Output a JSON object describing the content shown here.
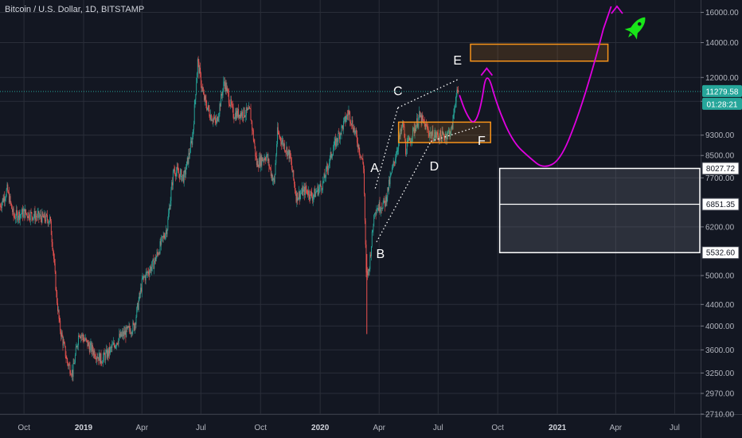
{
  "title": "Bitcoin / U.S. Dollar, 1D, BITSTAMP",
  "colors": {
    "background": "#131722",
    "grid": "#2a2e39",
    "up": "#26a69a",
    "down": "#ef5350",
    "projection": "#e000e0",
    "zone": "#f7931a",
    "price_line": "#26a69a",
    "rocket": "#19e619"
  },
  "rocket_icon": "rocket-icon",
  "chart_data": {
    "type": "candlestick",
    "yscale": "log",
    "ylim": [
      2710,
      16900
    ],
    "xlim": [
      "2018-08-25",
      "2021-08-10"
    ],
    "y_ticks": [
      16000,
      14000,
      12000,
      10800,
      9300,
      8500,
      7700,
      6200,
      5000,
      4400,
      4000,
      3600,
      3250,
      2970,
      2710
    ],
    "y_tick_labels": [
      "16000.00",
      "14000.00",
      "12000.00",
      "10800.00",
      "9300.00",
      "8500.00",
      "7700.00",
      "6200.00",
      "5000.00",
      "4400.00",
      "4000.00",
      "3600.00",
      "3250.00",
      "2970.00",
      "2710.00"
    ],
    "x_ticks": [
      {
        "label": "Oct",
        "date": "2018-10-01",
        "bold": false
      },
      {
        "label": "2019",
        "date": "2019-01-01",
        "bold": true
      },
      {
        "label": "Apr",
        "date": "2019-04-01",
        "bold": false
      },
      {
        "label": "Jul",
        "date": "2019-07-01",
        "bold": false
      },
      {
        "label": "Oct",
        "date": "2019-10-01",
        "bold": false
      },
      {
        "label": "2020",
        "date": "2020-01-01",
        "bold": true
      },
      {
        "label": "Apr",
        "date": "2020-04-01",
        "bold": false
      },
      {
        "label": "Jul",
        "date": "2020-07-01",
        "bold": false
      },
      {
        "label": "Oct",
        "date": "2020-10-01",
        "bold": false
      },
      {
        "label": "2021",
        "date": "2021-01-01",
        "bold": true
      },
      {
        "label": "Apr",
        "date": "2021-04-01",
        "bold": false
      },
      {
        "label": "Jul",
        "date": "2021-07-01",
        "bold": false
      }
    ],
    "price_path": [
      [
        "2018-08-25",
        6800
      ],
      [
        "2018-09-05",
        7300
      ],
      [
        "2018-09-15",
        6500
      ],
      [
        "2018-10-01",
        6600
      ],
      [
        "2018-10-20",
        6500
      ],
      [
        "2018-11-10",
        6400
      ],
      [
        "2018-11-15",
        5600
      ],
      [
        "2018-11-20",
        4600
      ],
      [
        "2018-11-25",
        4000
      ],
      [
        "2018-12-07",
        3400
      ],
      [
        "2018-12-15",
        3250
      ],
      [
        "2018-12-25",
        3900
      ],
      [
        "2019-01-10",
        3650
      ],
      [
        "2019-01-28",
        3450
      ],
      [
        "2019-02-08",
        3550
      ],
      [
        "2019-02-25",
        3800
      ],
      [
        "2019-03-20",
        4000
      ],
      [
        "2019-04-02",
        4900
      ],
      [
        "2019-04-20",
        5300
      ],
      [
        "2019-05-10",
        6200
      ],
      [
        "2019-05-20",
        8000
      ],
      [
        "2019-06-05",
        7700
      ],
      [
        "2019-06-18",
        9200
      ],
      [
        "2019-06-26",
        12900
      ],
      [
        "2019-07-05",
        11000
      ],
      [
        "2019-07-15",
        10200
      ],
      [
        "2019-07-25",
        9800
      ],
      [
        "2019-08-06",
        11800
      ],
      [
        "2019-08-20",
        10200
      ],
      [
        "2019-09-15",
        10300
      ],
      [
        "2019-09-25",
        8200
      ],
      [
        "2019-10-10",
        8500
      ],
      [
        "2019-10-22",
        7500
      ],
      [
        "2019-10-27",
        9400
      ],
      [
        "2019-11-15",
        8500
      ],
      [
        "2019-11-25",
        7100
      ],
      [
        "2019-12-10",
        7300
      ],
      [
        "2019-12-20",
        7100
      ],
      [
        "2020-01-05",
        7500
      ],
      [
        "2020-01-20",
        8700
      ],
      [
        "2020-02-14",
        10300
      ],
      [
        "2020-02-25",
        9300
      ],
      [
        "2020-03-08",
        8100
      ],
      [
        "2020-03-12",
        5000
      ],
      [
        "2020-03-16",
        5100
      ],
      [
        "2020-03-25",
        6700
      ],
      [
        "2020-04-10",
        6900
      ],
      [
        "2020-04-29",
        8800
      ],
      [
        "2020-05-08",
        9800
      ],
      [
        "2020-05-12",
        8700
      ],
      [
        "2020-06-02",
        10100
      ],
      [
        "2020-06-20",
        9300
      ],
      [
        "2020-07-10",
        9250
      ],
      [
        "2020-07-22",
        9500
      ],
      [
        "2020-07-28",
        11000
      ],
      [
        "2020-08-02",
        11279.58
      ]
    ],
    "current_price": 11279.58,
    "current_price_label": "11279.58",
    "countdown_label": "01:28:21",
    "wave_points": [
      {
        "label": "A",
        "date": "2020-03-26",
        "value": 7350
      },
      {
        "label": "B",
        "date": "2020-03-28",
        "value": 5800
      },
      {
        "label": "C",
        "date": "2020-04-30",
        "value": 10500
      },
      {
        "label": "D",
        "date": "2020-06-20",
        "value": 9050
      },
      {
        "label": "E",
        "date": "2020-08-01",
        "value": 11900
      },
      {
        "label": "F",
        "date": "2020-09-05",
        "value": 9700
      }
    ],
    "label_positions": {
      "A": {
        "date": "2020-03-25",
        "value": 7900
      },
      "B": {
        "date": "2020-04-03",
        "value": 5400
      },
      "C": {
        "date": "2020-04-30",
        "value": 11100
      },
      "D": {
        "date": "2020-06-25",
        "value": 7950
      },
      "E": {
        "date": "2020-07-31",
        "value": 12700
      },
      "F": {
        "date": "2020-09-06",
        "value": 8900
      }
    },
    "zones": [
      {
        "name": "target-zone",
        "x1": "2020-08-20",
        "x2": "2021-03-20",
        "y1": 12900,
        "y2": 13900,
        "kind": "orange"
      },
      {
        "name": "consolidation-zone",
        "x1": "2020-05-01",
        "x2": "2020-09-20",
        "y1": 9000,
        "y2": 9850,
        "kind": "orange"
      },
      {
        "name": "support-box",
        "x1": "2020-10-04",
        "x2": "2021-08-10",
        "y1": 5532.6,
        "y2": 8027.72,
        "kind": "gray"
      }
    ],
    "level_lines": [
      8027.72,
      6851.35,
      5532.6
    ],
    "level_labels": [
      "8027.72",
      "6851.35",
      "5532.60"
    ],
    "projection": [
      [
        "2020-08-03",
        11100
      ],
      [
        "2020-08-12",
        10300
      ],
      [
        "2020-08-25",
        9700
      ],
      [
        "2020-09-05",
        10500
      ],
      [
        "2020-09-14",
        12500
      ],
      [
        "2020-10-01",
        10500
      ],
      [
        "2020-10-25",
        9000
      ],
      [
        "2020-11-20",
        8400
      ],
      [
        "2020-12-10",
        8027.72
      ],
      [
        "2021-01-05",
        8300
      ],
      [
        "2021-02-01",
        10000
      ],
      [
        "2021-03-01",
        13000
      ],
      [
        "2021-03-25",
        17000
      ]
    ],
    "arrow_tips": [
      {
        "date": "2020-09-14",
        "value": 12500
      },
      {
        "date": "2021-04-03",
        "value": 16600
      }
    ]
  }
}
